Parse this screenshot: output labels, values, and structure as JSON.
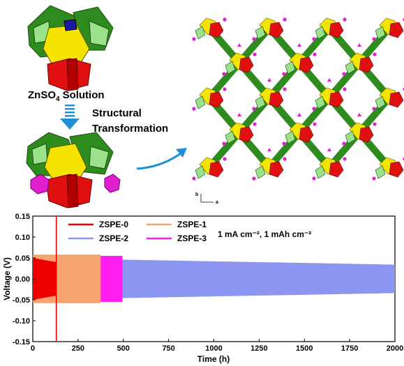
{
  "panel_top": {
    "solution_label_prefix": "ZnSO",
    "solution_label_subscript": "4",
    "solution_label_suffix": "Solution",
    "transformation_line1": "Structural",
    "transformation_line2": "Transformation",
    "axis_b": "b",
    "axis_a": "a",
    "colors": {
      "green": "#2e8b1e",
      "light_green": "#9be08a",
      "yellow": "#f5e400",
      "red": "#e01010",
      "blue": "#1a1aa0",
      "magenta": "#e020d0",
      "arrow_blue": "#1f8fd6"
    }
  },
  "chart_data": {
    "type": "line",
    "annotation": "1 mA cm⁻², 1 mAh cm⁻²",
    "xlabel": "Time (h)",
    "ylabel": "Voltage (V)",
    "xlim": [
      0,
      2000
    ],
    "ylim": [
      -0.15,
      0.15
    ],
    "x_ticks": [
      "0",
      "250",
      "500",
      "750",
      "1000",
      "1250",
      "1500",
      "1750",
      "2000"
    ],
    "y_ticks": [
      "0.15",
      "0.10",
      "0.05",
      "0.00",
      "-0.05",
      "-0.10",
      "-0.15"
    ],
    "legend_placement": "top-left, two columns",
    "series": [
      {
        "name": "ZSPE-0",
        "color": "#ee0000",
        "x_end": 130,
        "amplitude": 0.05,
        "spike_max": 0.155,
        "spike_min": -0.155
      },
      {
        "name": "ZSPE-1",
        "color": "#f4a46c",
        "x_end": 375,
        "amplitude": 0.058
      },
      {
        "name": "ZSPE-2",
        "color": "#8c96f0",
        "x_end": 2000,
        "amplitude": 0.05,
        "amplitude_end": 0.034
      },
      {
        "name": "ZSPE-3",
        "color": "#ff1cf0",
        "x_end": 495,
        "amplitude": 0.055
      }
    ]
  }
}
